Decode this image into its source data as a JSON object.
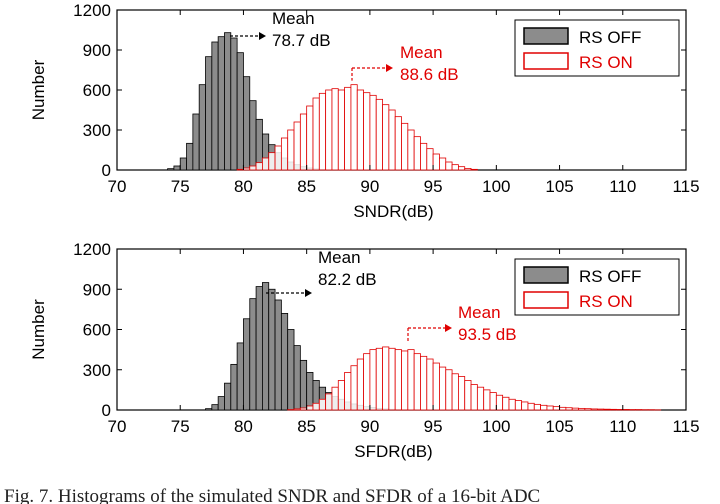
{
  "caption": "Fig. 7.   Histograms of the simulated SNDR and SFDR of a 16-bit ADC",
  "colors": {
    "off_fill": "#8c8c8c",
    "off_edge": "#000000",
    "on_fill": "#ffffff",
    "on_edge": "#e00000",
    "annotation_on": "#e00000"
  },
  "chart_data": [
    {
      "type": "bar",
      "xlabel": "SNDR(dB)",
      "ylabel": "Number",
      "xlim": [
        70,
        115
      ],
      "ylim": [
        0,
        1200
      ],
      "xticks": [
        "70",
        "75",
        "80",
        "85",
        "90",
        "95",
        "100",
        "105",
        "110",
        "115"
      ],
      "yticks": [
        "0",
        "300",
        "600",
        "900",
        "1200"
      ],
      "legend_position": "top-right",
      "legend": [
        "RS OFF",
        "RS ON"
      ],
      "series": [
        {
          "name": "RS OFF",
          "mean": 78.7,
          "bin_width": 0.5,
          "x": [
            74,
            74.5,
            75,
            75.5,
            76,
            76.5,
            77,
            77.5,
            78,
            78.5,
            79,
            79.5,
            80,
            80.5,
            81,
            81.5,
            82,
            82.5,
            83,
            83.5,
            84,
            84.5,
            85,
            85.5,
            86
          ],
          "values": [
            10,
            30,
            90,
            200,
            420,
            640,
            850,
            960,
            1000,
            1030,
            990,
            880,
            700,
            520,
            380,
            270,
            190,
            130,
            90,
            60,
            40,
            25,
            15,
            8,
            4
          ]
        },
        {
          "name": "RS ON",
          "mean": 88.6,
          "bin_width": 0.5,
          "x": [
            79.5,
            80,
            80.5,
            81,
            81.5,
            82,
            82.5,
            83,
            83.5,
            84,
            84.5,
            85,
            85.5,
            86,
            86.5,
            87,
            87.5,
            88,
            88.5,
            89,
            89.5,
            90,
            90.5,
            91,
            91.5,
            92,
            92.5,
            93,
            93.5,
            94,
            94.5,
            95,
            95.5,
            96,
            96.5,
            97,
            97.5,
            98
          ],
          "values": [
            5,
            15,
            30,
            55,
            90,
            130,
            180,
            240,
            300,
            360,
            420,
            480,
            540,
            575,
            600,
            610,
            600,
            620,
            640,
            600,
            580,
            560,
            530,
            490,
            450,
            400,
            350,
            300,
            250,
            200,
            160,
            120,
            90,
            60,
            40,
            25,
            12,
            5
          ]
        }
      ],
      "annotations": [
        {
          "text_1": "Mean",
          "text_2": "78.7 dB",
          "color": "black",
          "x": 78.7,
          "y": 1000
        },
        {
          "text_1": "Mean",
          "text_2": "88.6 dB",
          "color": "red",
          "x": 88.6,
          "y": 640
        }
      ]
    },
    {
      "type": "bar",
      "xlabel": "SFDR(dB)",
      "ylabel": "Number",
      "xlim": [
        70,
        115
      ],
      "ylim": [
        0,
        1200
      ],
      "xticks": [
        "70",
        "75",
        "80",
        "85",
        "90",
        "95",
        "100",
        "105",
        "110",
        "115"
      ],
      "yticks": [
        "0",
        "300",
        "600",
        "900",
        "1200"
      ],
      "legend_position": "top-right",
      "legend": [
        "RS OFF",
        "RS ON"
      ],
      "series": [
        {
          "name": "RS OFF",
          "mean": 82.2,
          "bin_width": 0.5,
          "x": [
            77,
            77.5,
            78,
            78.5,
            79,
            79.5,
            80,
            80.5,
            81,
            81.5,
            82,
            82.5,
            83,
            83.5,
            84,
            84.5,
            85,
            85.5,
            86,
            86.5,
            87,
            87.5,
            88,
            88.5,
            89,
            89.5,
            90,
            90.5,
            91,
            91.5,
            92,
            92.5,
            93
          ],
          "values": [
            10,
            40,
            100,
            200,
            340,
            500,
            680,
            830,
            920,
            950,
            900,
            820,
            720,
            600,
            480,
            370,
            280,
            220,
            170,
            130,
            100,
            80,
            60,
            45,
            35,
            25,
            18,
            12,
            8,
            5,
            3,
            2,
            1
          ]
        },
        {
          "name": "RS ON",
          "mean": 93.5,
          "bin_width": 0.5,
          "x": [
            83.5,
            84,
            84.5,
            85,
            85.5,
            86,
            86.5,
            87,
            87.5,
            88,
            88.5,
            89,
            89.5,
            90,
            90.5,
            91,
            91.5,
            92,
            92.5,
            93,
            93.5,
            94,
            94.5,
            95,
            95.5,
            96,
            96.5,
            97,
            97.5,
            98,
            98.5,
            99,
            99.5,
            100,
            100.5,
            101,
            101.5,
            102,
            102.5,
            103,
            103.5,
            104,
            104.5,
            105,
            105.5,
            106,
            106.5,
            107,
            107.5,
            108,
            108.5,
            109,
            109.5,
            110,
            110.5,
            111,
            111.5,
            112,
            112.5
          ],
          "values": [
            3,
            8,
            15,
            30,
            50,
            80,
            120,
            170,
            220,
            280,
            330,
            380,
            420,
            450,
            460,
            470,
            460,
            450,
            440,
            450,
            420,
            400,
            380,
            350,
            320,
            300,
            270,
            250,
            220,
            190,
            170,
            150,
            130,
            110,
            95,
            80,
            70,
            60,
            50,
            42,
            35,
            30,
            25,
            20,
            17,
            14,
            12,
            10,
            8,
            7,
            6,
            5,
            4,
            4,
            3,
            3,
            2,
            2,
            1
          ]
        }
      ],
      "annotations": [
        {
          "text_1": "Mean",
          "text_2": "82.2 dB",
          "color": "black",
          "x": 82.2,
          "y": 950
        },
        {
          "text_1": "Mean",
          "text_2": "93.5 dB",
          "color": "red",
          "x": 93.5,
          "y": 470
        }
      ]
    }
  ]
}
